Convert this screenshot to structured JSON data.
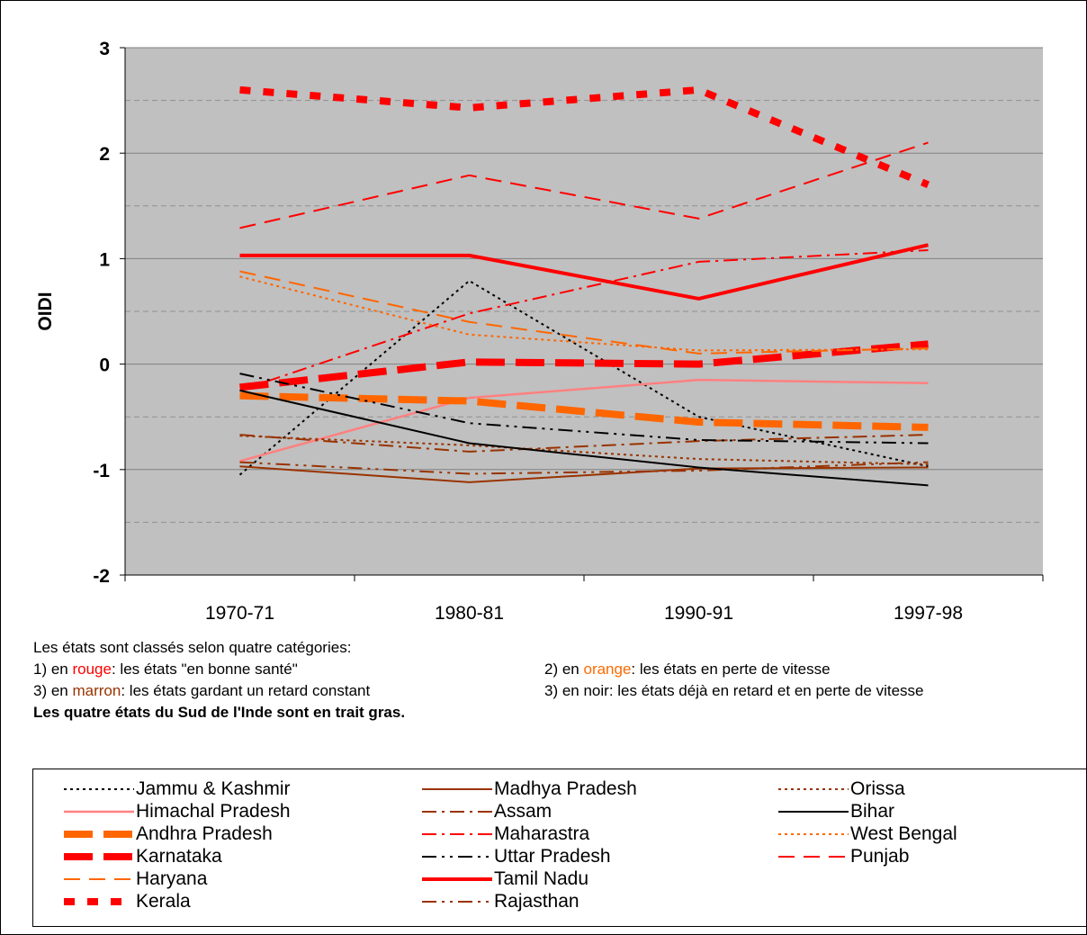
{
  "chart_data": {
    "type": "line",
    "ylabel": "OIDI",
    "xlabel": "",
    "categories": [
      "1970-71",
      "1980-81",
      "1990-91",
      "1997-98"
    ],
    "ylim": [
      -2,
      3
    ],
    "yticks": [
      "-2",
      "-1",
      "0",
      "1",
      "2",
      "3"
    ],
    "grid": true,
    "legend_position": "bottom",
    "series": [
      {
        "name": "Jammu & Kashmir",
        "values": [
          -1.05,
          0.79,
          -0.5,
          -0.97
        ],
        "color": "#000000",
        "style": "dot",
        "width": 2
      },
      {
        "name": "Himachal Pradesh",
        "values": [
          -0.92,
          -0.32,
          -0.15,
          -0.18
        ],
        "color": "#ff8080",
        "style": "solid",
        "width": 2.5
      },
      {
        "name": "Andhra Pradesh",
        "values": [
          -0.3,
          -0.35,
          -0.55,
          -0.6
        ],
        "color": "#ff6600",
        "style": "longdash",
        "width": 8
      },
      {
        "name": "Karnataka",
        "values": [
          -0.22,
          0.02,
          0.0,
          0.19
        ],
        "color": "#ff0000",
        "style": "longdash",
        "width": 8
      },
      {
        "name": "Haryana",
        "values": [
          0.88,
          0.4,
          0.1,
          0.15
        ],
        "color": "#ff6600",
        "style": "dash",
        "width": 2
      },
      {
        "name": "Kerala",
        "values": [
          2.6,
          2.43,
          2.6,
          1.7
        ],
        "color": "#ff0000",
        "style": "sqdash",
        "width": 8
      },
      {
        "name": "Madhya Pradesh",
        "values": [
          -0.97,
          -1.12,
          -0.99,
          -0.98
        ],
        "color": "#993300",
        "style": "solid",
        "width": 2
      },
      {
        "name": "Assam",
        "values": [
          -0.67,
          -0.83,
          -0.73,
          -0.67
        ],
        "color": "#993300",
        "style": "dashdot",
        "width": 2
      },
      {
        "name": "Maharastra",
        "values": [
          -0.25,
          0.48,
          0.97,
          1.08
        ],
        "color": "#ff0000",
        "style": "dashdot",
        "width": 2
      },
      {
        "name": "Uttar Pradesh",
        "values": [
          -0.09,
          -0.56,
          -0.72,
          -0.75
        ],
        "color": "#000000",
        "style": "dashdotdot",
        "width": 2
      },
      {
        "name": "Tamil Nadu",
        "values": [
          1.03,
          1.03,
          0.62,
          1.13
        ],
        "color": "#ff0000",
        "style": "solid",
        "width": 4
      },
      {
        "name": "Rajasthan",
        "values": [
          -0.93,
          -1.04,
          -1.01,
          -0.93
        ],
        "color": "#993300",
        "style": "dashdotdot",
        "width": 2
      },
      {
        "name": "Orissa",
        "values": [
          -0.68,
          -0.77,
          -0.9,
          -0.95
        ],
        "color": "#993300",
        "style": "dot",
        "width": 2
      },
      {
        "name": "Bihar",
        "values": [
          -0.25,
          -0.75,
          -0.98,
          -1.15
        ],
        "color": "#000000",
        "style": "solid",
        "width": 2
      },
      {
        "name": "West Bengal",
        "values": [
          0.83,
          0.28,
          0.13,
          0.14
        ],
        "color": "#ff6600",
        "style": "dot",
        "width": 2
      },
      {
        "name": "Punjab",
        "values": [
          1.29,
          1.79,
          1.38,
          2.1
        ],
        "color": "#ff0000",
        "style": "dash",
        "width": 2
      }
    ]
  },
  "notes": {
    "line1": "Les états sont classés selon quatre catégories:",
    "item1_prefix": "1) en ",
    "item1_color": "rouge",
    "item1_suffix": ": les états \"en bonne santé\"",
    "item2_prefix": "2) en ",
    "item2_color": "orange",
    "item2_suffix": ": les états en perte de vitesse",
    "item3_prefix": "3) en ",
    "item3_color": "marron",
    "item3_suffix": ": les états gardant un retard constant",
    "item4": "3) en noir: les états déjà en retard et en perte de vitesse",
    "bold_line": "Les quatre états du Sud de l'Inde sont en trait gras."
  }
}
